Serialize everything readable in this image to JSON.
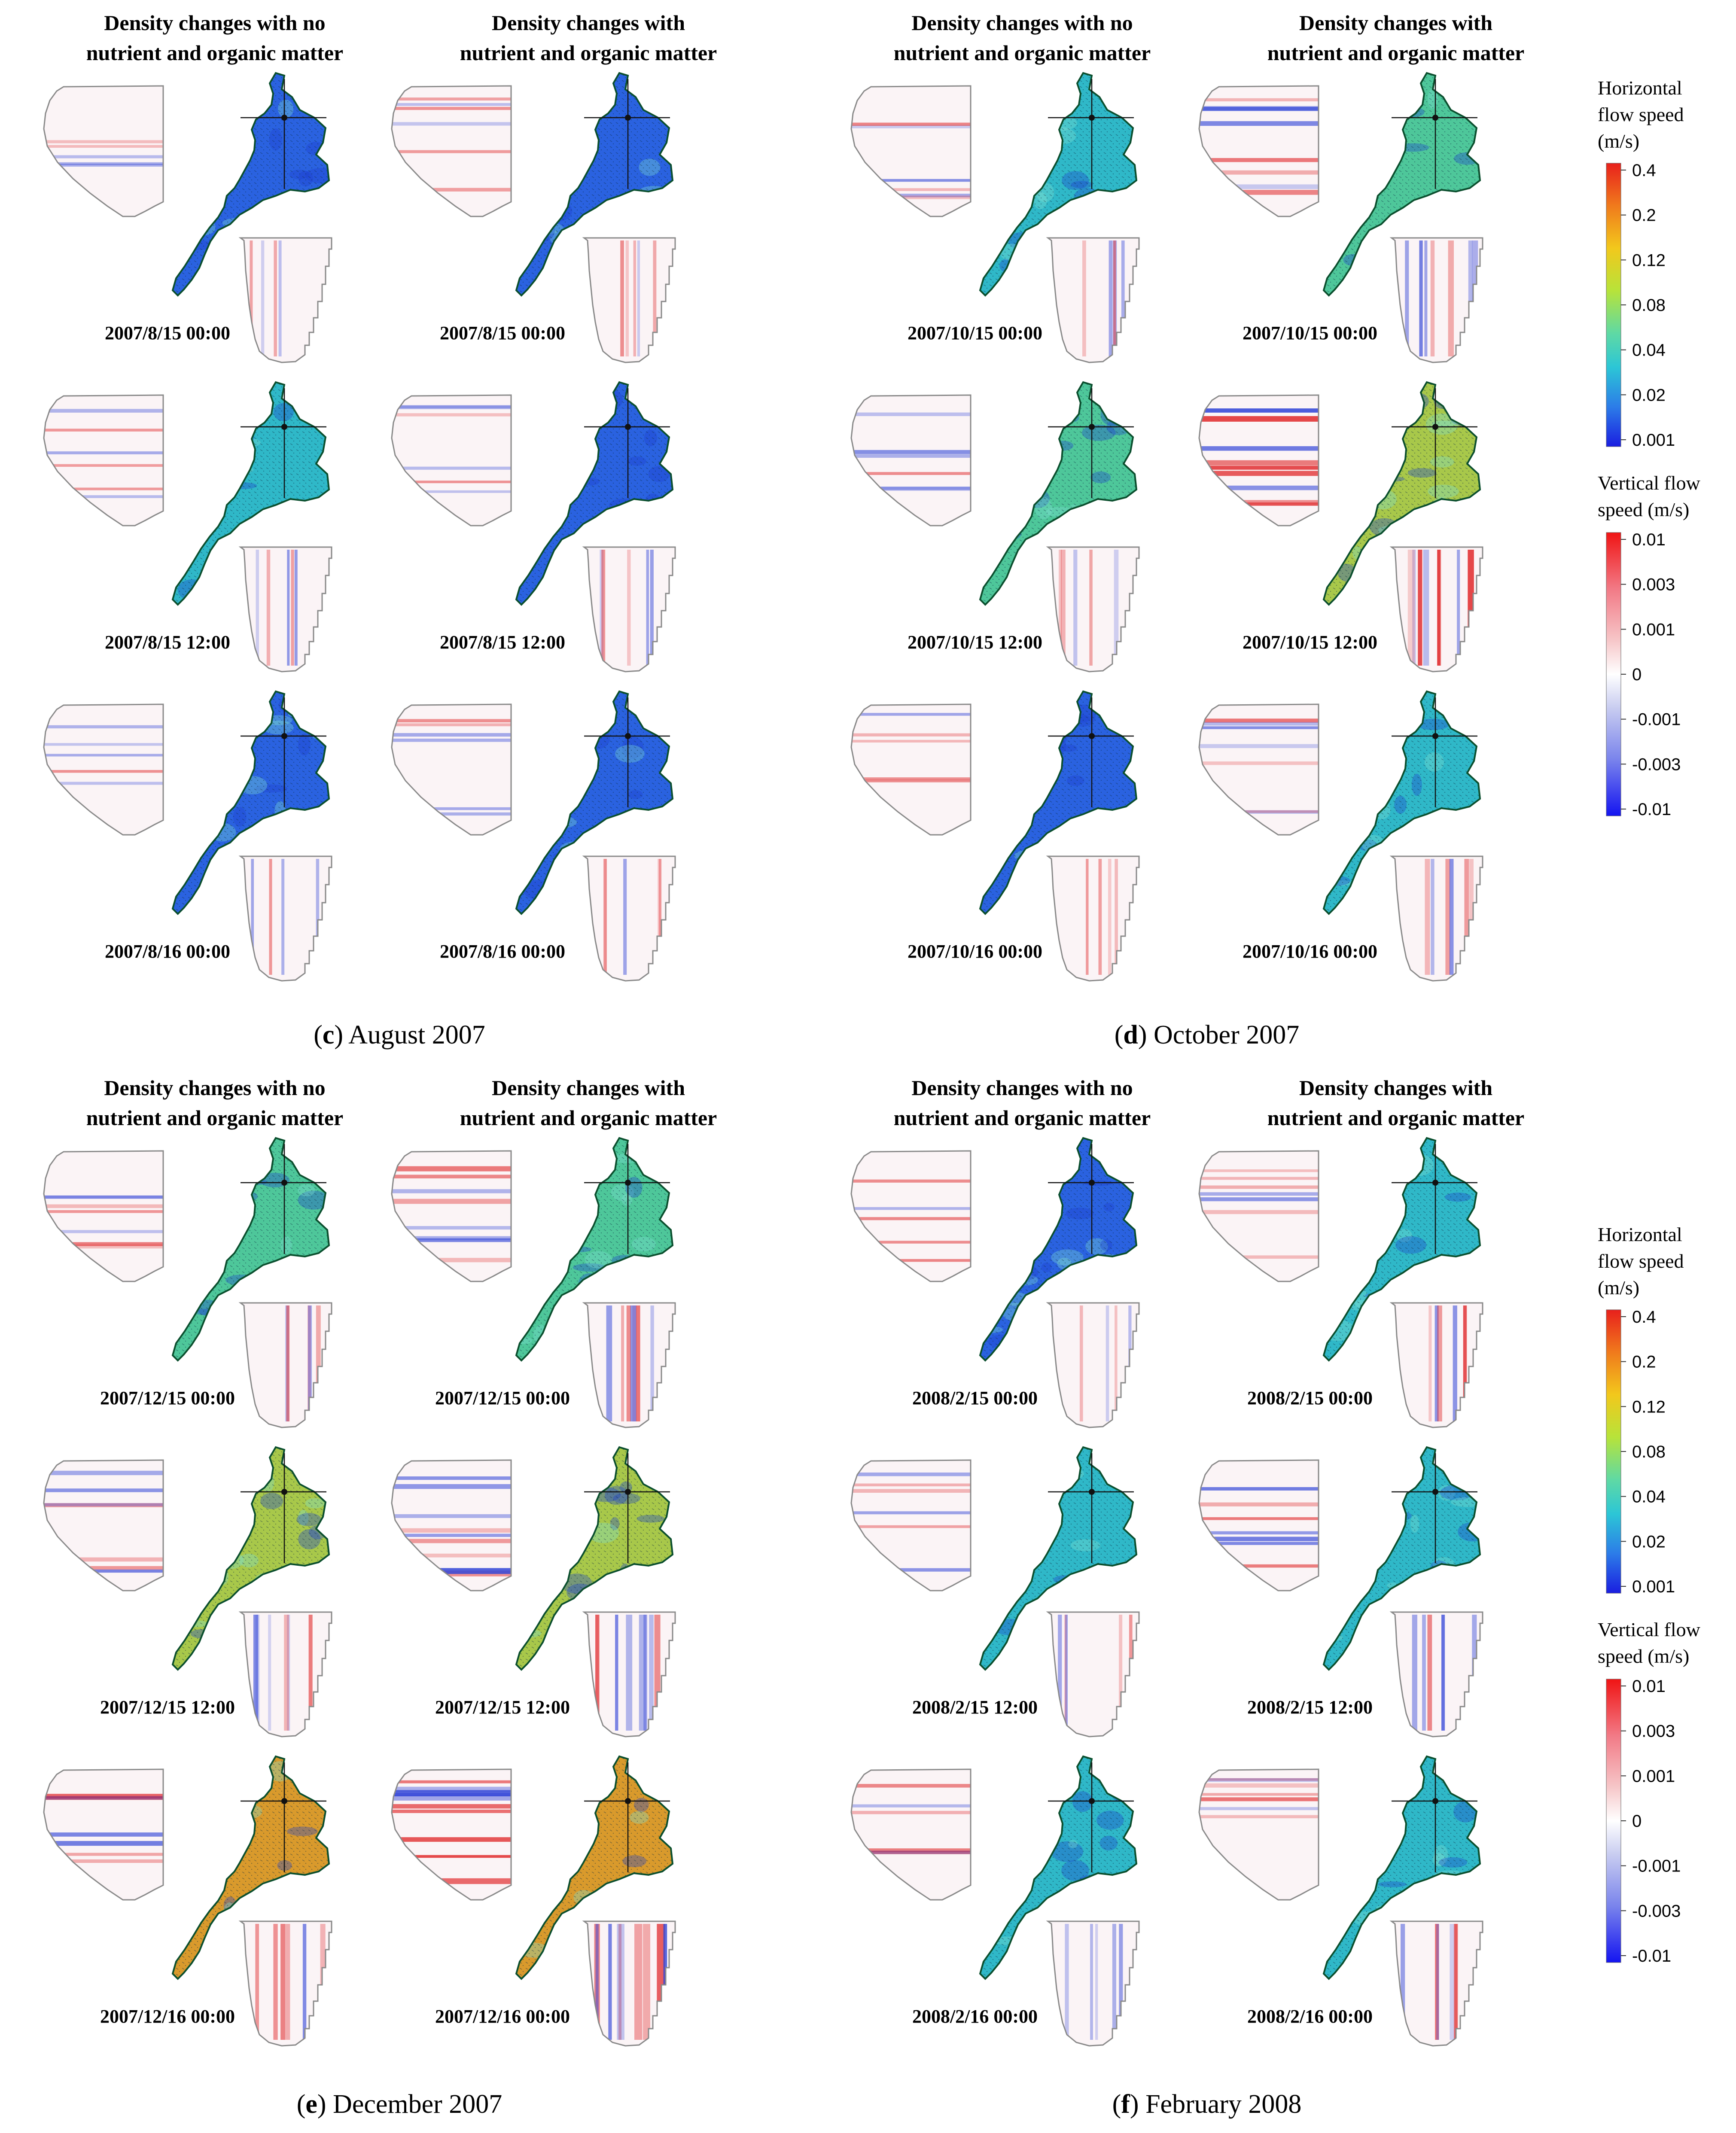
{
  "column_headers": {
    "no_nutrient": [
      "Density changes with no",
      "nutrient and organic matter"
    ],
    "with_nutrient": [
      "Density changes with",
      "nutrient and organic matter"
    ]
  },
  "panels": [
    {
      "id": "c",
      "caption_letter": "c",
      "caption_text": "August 2007",
      "rows": [
        {
          "ts_no": "2007/8/15 00:00",
          "ts_with": "2007/8/15 00:00",
          "lake_no": "blue",
          "lake_with": "blue"
        },
        {
          "ts_no": "2007/8/15 12:00",
          "ts_with": "2007/8/15 12:00",
          "lake_no": "teal",
          "lake_with": "blue"
        },
        {
          "ts_no": "2007/8/16 00:00",
          "ts_with": "2007/8/16 00:00",
          "lake_no": "blue",
          "lake_with": "blue"
        }
      ]
    },
    {
      "id": "d",
      "caption_letter": "d",
      "caption_text": "October 2007",
      "rows": [
        {
          "ts_no": "2007/10/15 00:00",
          "ts_with": "2007/10/15 00:00",
          "lake_no": "teal",
          "lake_with": "green"
        },
        {
          "ts_no": "2007/10/15 12:00",
          "ts_with": "2007/10/15 12:00",
          "lake_no": "green",
          "lake_with": "yellow"
        },
        {
          "ts_no": "2007/10/16 00:00",
          "ts_with": "2007/10/16 00:00",
          "lake_no": "blue",
          "lake_with": "teal"
        }
      ]
    },
    {
      "id": "e",
      "caption_letter": "e",
      "caption_text": "December 2007",
      "rows": [
        {
          "ts_no": "2007/12/15 00:00",
          "ts_with": "2007/12/15 00:00",
          "lake_no": "green",
          "lake_with": "green"
        },
        {
          "ts_no": "2007/12/15 12:00",
          "ts_with": "2007/12/15 12:00",
          "lake_no": "yellow",
          "lake_with": "yellow"
        },
        {
          "ts_no": "2007/12/16 00:00",
          "ts_with": "2007/12/16 00:00",
          "lake_no": "orange",
          "lake_with": "orange"
        }
      ]
    },
    {
      "id": "f",
      "caption_letter": "f",
      "caption_text": "February 2008",
      "rows": [
        {
          "ts_no": "2008/2/15 00:00",
          "ts_with": "2008/2/15 00:00",
          "lake_no": "blue",
          "lake_with": "teal"
        },
        {
          "ts_no": "2008/2/15 12:00",
          "ts_with": "2008/2/15 12:00",
          "lake_no": "teal",
          "lake_with": "teal"
        },
        {
          "ts_no": "2008/2/16 00:00",
          "ts_with": "2008/2/16 00:00",
          "lake_no": "teal",
          "lake_with": "teal"
        }
      ]
    }
  ],
  "legends": {
    "horizontal": {
      "title": [
        "Horizontal",
        "flow speed",
        "(m/s)"
      ],
      "ticks": [
        "0.4",
        "0.2",
        "0.12",
        "0.08",
        "0.04",
        "0.02",
        "0.001"
      ]
    },
    "vertical": {
      "title": [
        "Vertical flow",
        "speed (m/s)"
      ],
      "ticks": [
        "0.01",
        "0.003",
        "0.001",
        "0",
        "-0.001",
        "-0.003",
        "-0.01"
      ]
    }
  },
  "colors": {
    "lake_blue": "#2a62e0",
    "lake_teal": "#2fb8c8",
    "lake_green": "#4ec79a",
    "lake_yellow": "#a8c84a",
    "lake_orange": "#d99a2c",
    "shore": "#0b4f2e",
    "positive": "#e0282a",
    "negative": "#3548d8",
    "section_outline": "#8a8a8a"
  }
}
